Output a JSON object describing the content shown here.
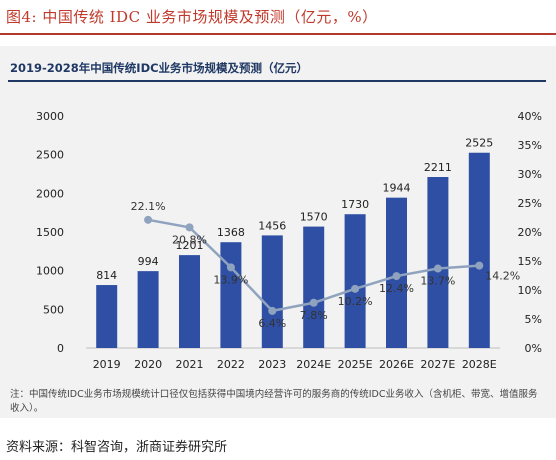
{
  "figure": {
    "title": "图4:  中国传统 IDC 业务市场规模及预测（亿元，%）",
    "source": "资料来源：科智咨询，浙商证券研究所"
  },
  "chart_data": {
    "type": "bar",
    "title": "2019-2028年中国传统IDC业务市场规模及预测（亿元）",
    "categories": [
      "2019",
      "2020",
      "2021",
      "2022",
      "2023",
      "2024E",
      "2025E",
      "2026E",
      "2027E",
      "2028E"
    ],
    "series": [
      {
        "values": [
          814,
          994,
          1201,
          1368,
          1456,
          1570,
          1730,
          1944,
          2211,
          2525
        ]
      },
      {
        "values": [
          null,
          22.1,
          20.8,
          13.9,
          6.4,
          7.8,
          10.2,
          12.4,
          13.7,
          14.2
        ],
        "labels": [
          "",
          "22.1%",
          "20.8%",
          "13.9%",
          "6.4%",
          "7.8%",
          "10.2%",
          "12.4%",
          "13.7%",
          "14.2%"
        ]
      }
    ],
    "y_left": {
      "min": 0,
      "max": 3000,
      "ticks": [
        "0",
        "500",
        "1000",
        "1500",
        "2000",
        "2500",
        "3000"
      ]
    },
    "y_right": {
      "min": 0,
      "max": 40,
      "ticks": [
        "0%",
        "5%",
        "10%",
        "15%",
        "20%",
        "25%",
        "30%",
        "35%",
        "40%"
      ]
    },
    "grid": false,
    "colors": {
      "bar": "#2e4fa3",
      "line": "#8fa3bf",
      "title": "#1f3864",
      "figure_title": "#c0392b"
    },
    "note": "注：中国传统IDC业务市场规模统计口径仅包括获得中国境内经营许可的服务商的传统IDC业务收入（含机柜、带宽、增值服务收入）。"
  }
}
